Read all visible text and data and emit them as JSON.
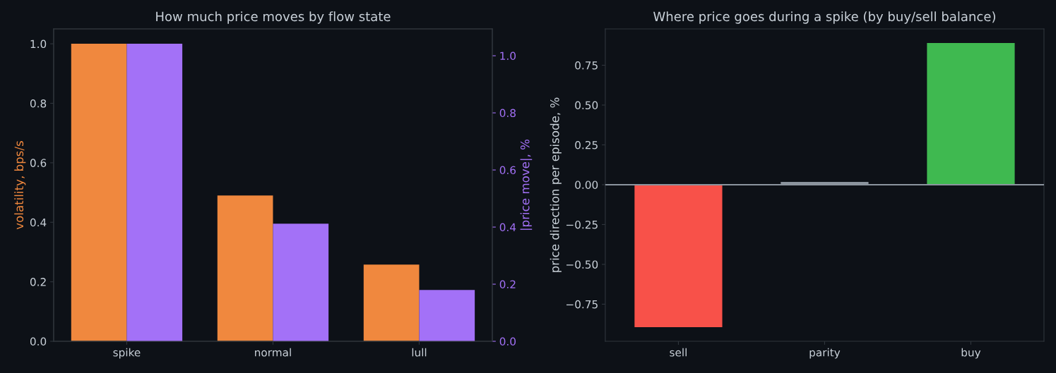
{
  "chart_data": [
    {
      "type": "bar",
      "title": "How much price moves by flow state",
      "ylabel": "volatility, bps/s",
      "y2label": "|price move|, %",
      "categories": [
        "spike",
        "normal",
        "lull"
      ],
      "series": [
        {
          "color": "#f0883e",
          "values": [
            1.0,
            0.49,
            0.258
          ]
        },
        {
          "color": "#a371f7",
          "values": [
            1.042,
            0.412,
            0.18
          ],
          "axis": "y2"
        }
      ],
      "ylim": [
        0,
        1.05
      ],
      "yticks": [
        {
          "value": 0,
          "label": "0.0"
        },
        {
          "value": 0.2,
          "label": "0.2"
        },
        {
          "value": 0.4,
          "label": "0.4"
        },
        {
          "value": 0.6,
          "label": "0.6"
        },
        {
          "value": 0.8,
          "label": "0.8"
        },
        {
          "value": 1.0,
          "label": "1.0"
        }
      ],
      "y2lim": [
        0,
        1.094
      ],
      "y2ticks": [
        {
          "value": 0,
          "label": "0.0"
        },
        {
          "value": 0.2,
          "label": "0.2"
        },
        {
          "value": 0.4,
          "label": "0.4"
        },
        {
          "value": 0.6,
          "label": "0.6"
        },
        {
          "value": 0.8,
          "label": "0.8"
        },
        {
          "value": 1.0,
          "label": "1.0"
        }
      ],
      "grid": false
    },
    {
      "type": "bar",
      "title": "Where price goes during a spike (by buy/sell balance)",
      "ylabel": "price direction per episode, %",
      "categories": [
        "sell",
        "parity",
        "buy"
      ],
      "values": [
        -0.894,
        0.017,
        0.889
      ],
      "colors": [
        "#f85149",
        "#8b949e",
        "#3fb950"
      ],
      "ylim": [
        -0.983,
        0.978
      ],
      "yticks": [
        {
          "value": -0.75,
          "label": "−0.75"
        },
        {
          "value": -0.5,
          "label": "−0.50"
        },
        {
          "value": -0.25,
          "label": "−0.25"
        },
        {
          "value": 0,
          "label": "0.00"
        },
        {
          "value": 0.25,
          "label": "0.25"
        },
        {
          "value": 0.5,
          "label": "0.50"
        },
        {
          "value": 0.75,
          "label": "0.75"
        }
      ],
      "ref_lines": [
        {
          "axis": "y",
          "value": 0,
          "color": "#8b949e"
        }
      ],
      "grid": false
    }
  ]
}
